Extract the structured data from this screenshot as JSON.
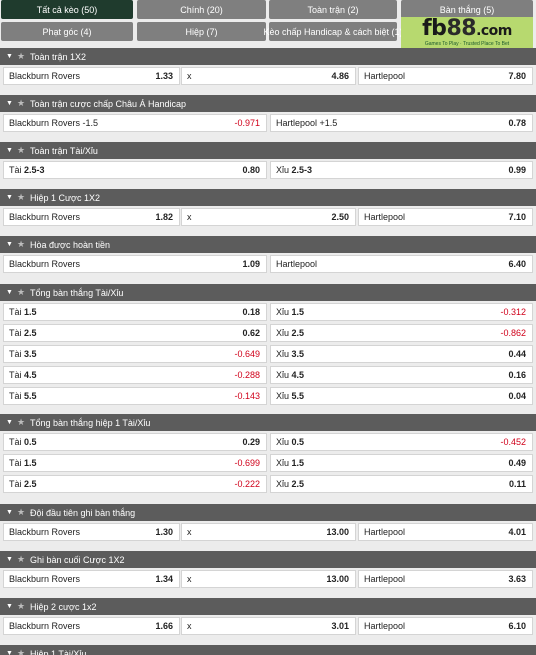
{
  "tabs": [
    {
      "label": "Tất cả kèo (50)",
      "active": true
    },
    {
      "label": "Chính (20)",
      "active": false
    },
    {
      "label": "Toàn trận (2)",
      "active": false
    },
    {
      "label": "Bàn thắng (5)",
      "active": false
    },
    {
      "label": "Phạt góc (4)",
      "active": false
    },
    {
      "label": "Hiệp (7)",
      "active": false
    },
    {
      "label": "Kèo chấp Handicap & cách biệt (1)",
      "active": false
    }
  ],
  "logo": {
    "text_main": "fb",
    "text_num": "88",
    "text_suffix": ".com",
    "tagline": "Games To Play · Trusted Place To Bet"
  },
  "sections": [
    {
      "title": "Toàn trận 1X2",
      "rows": [
        [
          {
            "label": "Blackburn Rovers",
            "odd": "1.33"
          },
          {
            "label": "x",
            "odd": "4.86"
          },
          {
            "label": "Hartlepool",
            "odd": "7.80"
          }
        ]
      ]
    },
    {
      "title": "Toàn trận cược chấp Châu Á Handicap",
      "rows": [
        [
          {
            "label": "Blackburn Rovers -1.5",
            "odd": "-0.971"
          },
          {
            "label": "Hartlepool +1.5",
            "odd": "0.78"
          }
        ]
      ]
    },
    {
      "title": "Toàn trận Tài/Xỉu",
      "rows": [
        [
          {
            "label": "Tài",
            "line": "2.5-3",
            "odd": "0.80"
          },
          {
            "label": "Xỉu",
            "line": "2.5-3",
            "odd": "0.99"
          }
        ]
      ]
    },
    {
      "title": "Hiệp 1 Cược 1X2",
      "rows": [
        [
          {
            "label": "Blackburn Rovers",
            "odd": "1.82"
          },
          {
            "label": "x",
            "odd": "2.50"
          },
          {
            "label": "Hartlepool",
            "odd": "7.10"
          }
        ]
      ]
    },
    {
      "title": "Hòa được hoàn tiền",
      "rows": [
        [
          {
            "label": "Blackburn Rovers",
            "odd": "1.09"
          },
          {
            "label": "Hartlepool",
            "odd": "6.40"
          }
        ]
      ]
    },
    {
      "title": "Tổng bàn thắng Tài/Xỉu",
      "rows": [
        [
          {
            "label": "Tài",
            "line": "1.5",
            "odd": "0.18"
          },
          {
            "label": "Xỉu",
            "line": "1.5",
            "odd": "-0.312"
          }
        ],
        [
          {
            "label": "Tài",
            "line": "2.5",
            "odd": "0.62"
          },
          {
            "label": "Xỉu",
            "line": "2.5",
            "odd": "-0.862"
          }
        ],
        [
          {
            "label": "Tài",
            "line": "3.5",
            "odd": "-0.649"
          },
          {
            "label": "Xỉu",
            "line": "3.5",
            "odd": "0.44"
          }
        ],
        [
          {
            "label": "Tài",
            "line": "4.5",
            "odd": "-0.288"
          },
          {
            "label": "Xỉu",
            "line": "4.5",
            "odd": "0.16"
          }
        ],
        [
          {
            "label": "Tài",
            "line": "5.5",
            "odd": "-0.143"
          },
          {
            "label": "Xỉu",
            "line": "5.5",
            "odd": "0.04"
          }
        ]
      ]
    },
    {
      "title": "Tổng bàn thắng hiệp 1 Tài/Xỉu",
      "rows": [
        [
          {
            "label": "Tài",
            "line": "0.5",
            "odd": "0.29"
          },
          {
            "label": "Xỉu",
            "line": "0.5",
            "odd": "-0.452"
          }
        ],
        [
          {
            "label": "Tài",
            "line": "1.5",
            "odd": "-0.699"
          },
          {
            "label": "Xỉu",
            "line": "1.5",
            "odd": "0.49"
          }
        ],
        [
          {
            "label": "Tài",
            "line": "2.5",
            "odd": "-0.222"
          },
          {
            "label": "Xỉu",
            "line": "2.5",
            "odd": "0.11"
          }
        ]
      ]
    },
    {
      "title": "Đội đầu tiên ghi bàn thắng",
      "rows": [
        [
          {
            "label": "Blackburn Rovers",
            "odd": "1.30"
          },
          {
            "label": "x",
            "odd": "13.00"
          },
          {
            "label": "Hartlepool",
            "odd": "4.01"
          }
        ]
      ]
    },
    {
      "title": "Ghi bàn cuối Cược 1X2",
      "rows": [
        [
          {
            "label": "Blackburn Rovers",
            "odd": "1.34"
          },
          {
            "label": "x",
            "odd": "13.00"
          },
          {
            "label": "Hartlepool",
            "odd": "3.63"
          }
        ]
      ]
    },
    {
      "title": "Hiệp 2 cược 1x2",
      "rows": [
        [
          {
            "label": "Blackburn Rovers",
            "odd": "1.66"
          },
          {
            "label": "x",
            "odd": "3.01"
          },
          {
            "label": "Hartlepool",
            "odd": "6.10"
          }
        ]
      ]
    },
    {
      "title": "Hiệp 1 Tài/Xỉu",
      "rows": []
    }
  ],
  "icons": {
    "caret": "caret-down-icon",
    "star": "star-icon"
  },
  "colors": {
    "active_tab": "#1f3b2d",
    "tab": "#7f7f7f",
    "section_header": "#5c5c5c",
    "negative_odd": "#d0021b",
    "logo_bg": "#b7d96f"
  }
}
